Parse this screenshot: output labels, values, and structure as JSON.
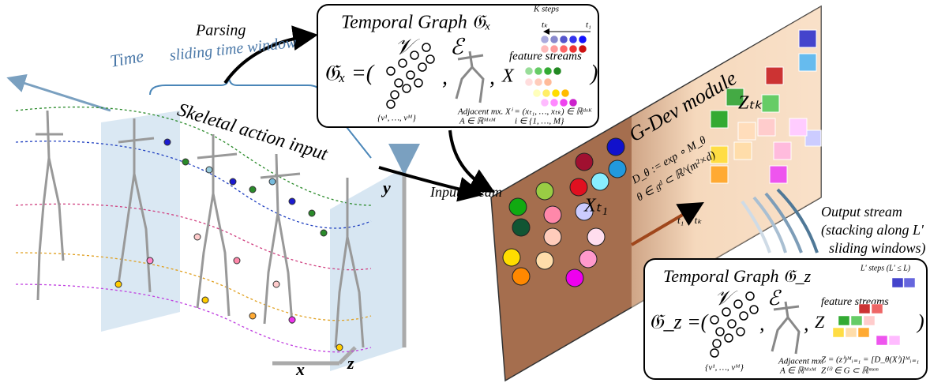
{
  "left": {
    "parsing": "Parsing",
    "time": "Time",
    "window": "sliding time window",
    "title": "Skeletal action input",
    "axis_y": "y",
    "axis_x": "x",
    "axis_z": "z"
  },
  "input_graph": {
    "title": "Temporal Graph 𝔊ₓ",
    "lhs": "𝔊ₓ =(",
    "v": "𝒱",
    "e": "ℰ",
    "x": "X",
    "close": ")",
    "k_steps": "K steps",
    "t_k": "tₖ",
    "t_1": "t₁",
    "feature_streams": "feature streams",
    "vertices": "{v¹, …, vᴹ}",
    "adj": "Adjacent mx.",
    "adj_def": "A ∈ ℝᴹˣᴹ",
    "x_def": "Xⁱ = (xₜ₁, …, xₜₖ) ∈ ℝᵈˣᴷ",
    "i_def": "i ∈ {1, …, M}"
  },
  "module": {
    "input_stream": "Input stream",
    "x_t1": "Xₜ₁",
    "name": "G-Dev module",
    "d_def": "D_θ := exp ∘ M_θ",
    "theta_def": "θ ∈ 𝔤ᵈ ⊂ ℝ^(m²×d)",
    "range": "t₁ ~ tₖ",
    "z_tk": "Zₜₖ",
    "output_stream": "Output stream",
    "output_note_1": "(stacking along L'",
    "output_note_2": "sliding windows)"
  },
  "output_graph": {
    "title": "Temporal Graph 𝔊_z",
    "lhs": "𝔊_z =(",
    "v": "𝒱",
    "e": "ℰ",
    "z": "Z",
    "close": ")",
    "l_steps": "L' steps (L' ≤ L)",
    "feature_streams": "feature streams",
    "vertices": "{v¹, …, vᴹ}",
    "adj": "Adjacent mx.",
    "adj_def": "A ∈ ℝᴹˣᴹ",
    "z_def": "Z = (zⁱ)ᴹᵢ₌₁ = [D_θ(Xⁱ)]ᴹᵢ₌₁",
    "zi_def": "Z⁽ⁱ⁾ ∈ G ⊂ ℝᵐˣᵐ"
  }
}
